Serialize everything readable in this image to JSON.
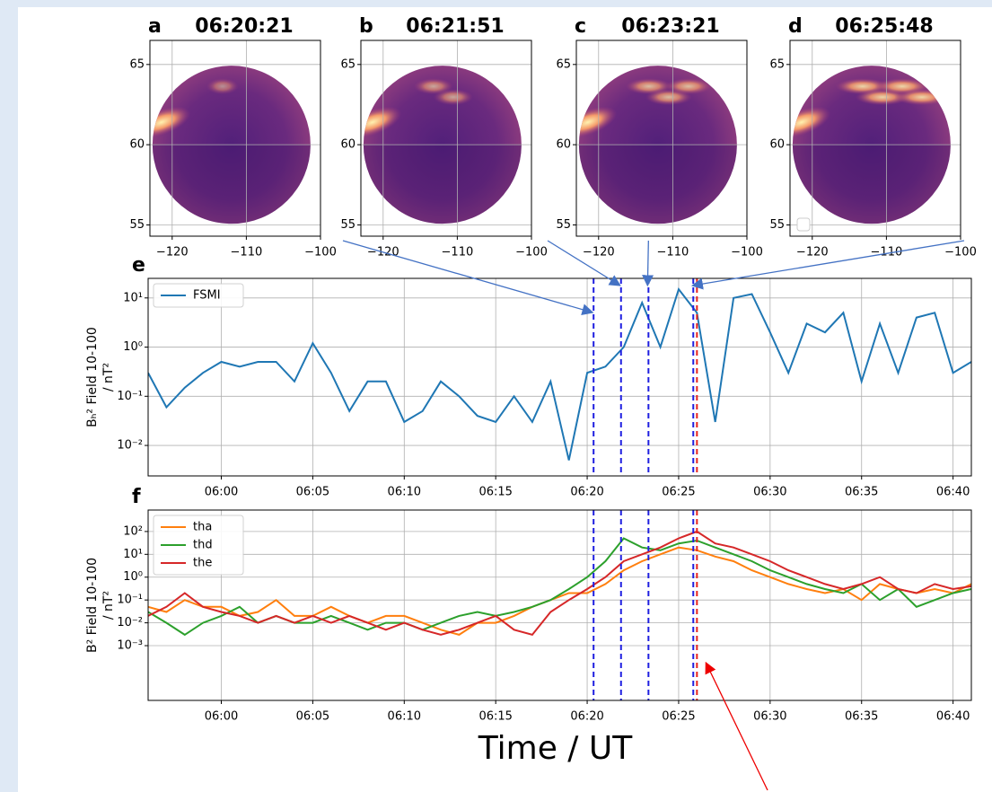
{
  "chart_data": [
    {
      "type": "image",
      "label": "a",
      "title": "06:20:21",
      "xlim": [
        -123,
        -100
      ],
      "ylim": [
        54.3,
        66.5
      ],
      "xticks": [
        {
          "value": -120,
          "label": "−120"
        },
        {
          "value": -110,
          "label": "−110"
        },
        {
          "value": -100,
          "label": "−100"
        }
      ],
      "yticks": [
        55,
        60,
        65
      ],
      "grid": true
    },
    {
      "type": "image",
      "label": "b",
      "title": "06:21:51",
      "xlim": [
        -123,
        -100
      ],
      "ylim": [
        54.3,
        66.5
      ],
      "xticks": [
        {
          "value": -120,
          "label": "−120"
        },
        {
          "value": -110,
          "label": "−110"
        },
        {
          "value": -100,
          "label": "−100"
        }
      ],
      "yticks": [
        55,
        60,
        65
      ],
      "grid": true
    },
    {
      "type": "image",
      "label": "c",
      "title": "06:23:21",
      "xlim": [
        -123,
        -100
      ],
      "ylim": [
        54.3,
        66.5
      ],
      "xticks": [
        {
          "value": -120,
          "label": "−120"
        },
        {
          "value": -110,
          "label": "−110"
        },
        {
          "value": -100,
          "label": "−100"
        }
      ],
      "yticks": [
        55,
        60,
        65
      ],
      "grid": true
    },
    {
      "type": "image",
      "label": "d",
      "title": "06:25:48",
      "xlim": [
        -123,
        -100
      ],
      "ylim": [
        54.3,
        66.5
      ],
      "xticks": [
        {
          "value": -120,
          "label": "−120"
        },
        {
          "value": -110,
          "label": "−110"
        },
        {
          "value": -100,
          "label": "−100"
        }
      ],
      "yticks": [
        55,
        60,
        65
      ],
      "grid": true
    },
    {
      "type": "line",
      "label": "e",
      "ylabel": [
        "Bₕ² Field 10-100",
        "/ nT²"
      ],
      "log_y": true,
      "grid": true,
      "legend": "upper left",
      "xlim": [
        "05:56",
        "06:41"
      ],
      "ylim": [
        0.0024,
        25
      ],
      "xticks": [
        "06:00",
        "06:05",
        "06:10",
        "06:15",
        "06:20",
        "06:25",
        "06:30",
        "06:35",
        "06:40"
      ],
      "yticks": [
        {
          "value": 0.01,
          "label": "10⁻²"
        },
        {
          "value": 0.1,
          "label": "10⁻¹"
        },
        {
          "value": 1,
          "label": "10⁰"
        },
        {
          "value": 10,
          "label": "10¹"
        }
      ],
      "event_line": "06:26",
      "event_color": "#e8231c",
      "panel_line_color": "#1f1fe0",
      "x": [
        "05:56",
        "05:57",
        "05:58",
        "05:59",
        "06:00",
        "06:01",
        "06:02",
        "06:03",
        "06:04",
        "06:05",
        "06:06",
        "06:07",
        "06:08",
        "06:09",
        "06:10",
        "06:11",
        "06:12",
        "06:13",
        "06:14",
        "06:15",
        "06:16",
        "06:17",
        "06:18",
        "06:19",
        "06:20",
        "06:21",
        "06:22",
        "06:23",
        "06:24",
        "06:25",
        "06:26",
        "06:27",
        "06:28",
        "06:29",
        "06:30",
        "06:31",
        "06:32",
        "06:33",
        "06:34",
        "06:35",
        "06:36",
        "06:37",
        "06:38",
        "06:39",
        "06:40",
        "06:41"
      ],
      "series": [
        {
          "name": "FSMI",
          "color": "#1f77b4",
          "values": [
            0.3,
            0.06,
            0.15,
            0.3,
            0.5,
            0.4,
            0.5,
            0.5,
            0.2,
            1.2,
            0.3,
            0.05,
            0.2,
            0.2,
            0.03,
            0.05,
            0.2,
            0.1,
            0.04,
            0.03,
            0.1,
            0.03,
            0.2,
            0.005,
            0.3,
            0.4,
            1,
            8,
            1,
            15,
            5,
            0.03,
            10,
            12,
            2,
            0.3,
            3,
            2,
            5,
            0.2,
            3,
            0.3,
            4,
            5,
            0.3,
            0.5
          ]
        }
      ]
    },
    {
      "type": "line",
      "label": "f",
      "ylabel": [
        "B² Field 10-100",
        "/ nT²"
      ],
      "xlabel": "Time / UT",
      "log_y": true,
      "grid": true,
      "legend": "upper left",
      "xlim": [
        "05:56",
        "06:41"
      ],
      "ylim": [
        4e-06,
        870
      ],
      "xticks": [
        "06:00",
        "06:05",
        "06:10",
        "06:15",
        "06:20",
        "06:25",
        "06:30",
        "06:35",
        "06:40"
      ],
      "yticks": [
        {
          "value": 0.001,
          "label": "10⁻³"
        },
        {
          "value": 0.01,
          "label": "10⁻²"
        },
        {
          "value": 0.1,
          "label": "10⁻¹"
        },
        {
          "value": 1,
          "label": "10⁰"
        },
        {
          "value": 10,
          "label": "10¹"
        },
        {
          "value": 100,
          "label": "10²"
        }
      ],
      "event_line": "06:26",
      "event_color": "#e8231c",
      "panel_line_color": "#1f1fe0",
      "x": [
        "05:56",
        "05:57",
        "05:58",
        "05:59",
        "06:00",
        "06:01",
        "06:02",
        "06:03",
        "06:04",
        "06:05",
        "06:06",
        "06:07",
        "06:08",
        "06:09",
        "06:10",
        "06:11",
        "06:12",
        "06:13",
        "06:14",
        "06:15",
        "06:16",
        "06:17",
        "06:18",
        "06:19",
        "06:20",
        "06:21",
        "06:22",
        "06:23",
        "06:24",
        "06:25",
        "06:26",
        "06:27",
        "06:28",
        "06:29",
        "06:30",
        "06:31",
        "06:32",
        "06:33",
        "06:34",
        "06:35",
        "06:36",
        "06:37",
        "06:38",
        "06:39",
        "06:40",
        "06:41"
      ],
      "series": [
        {
          "name": "tha",
          "color": "#ff7f0e",
          "values": [
            0.05,
            0.03,
            0.1,
            0.05,
            0.05,
            0.02,
            0.03,
            0.1,
            0.02,
            0.02,
            0.05,
            0.02,
            0.01,
            0.02,
            0.02,
            0.01,
            0.005,
            0.003,
            0.01,
            0.01,
            0.02,
            0.05,
            0.1,
            0.2,
            0.2,
            0.5,
            2,
            5,
            10,
            20,
            15,
            8,
            5,
            2,
            1,
            0.5,
            0.3,
            0.2,
            0.3,
            0.1,
            0.5,
            0.3,
            0.2,
            0.3,
            0.2,
            0.5
          ]
        },
        {
          "name": "thd",
          "color": "#2ca02c",
          "values": [
            0.03,
            0.01,
            0.003,
            0.01,
            0.02,
            0.05,
            0.01,
            0.02,
            0.01,
            0.01,
            0.02,
            0.01,
            0.005,
            0.01,
            0.01,
            0.005,
            0.01,
            0.02,
            0.03,
            0.02,
            0.03,
            0.05,
            0.1,
            0.3,
            1,
            5,
            50,
            20,
            15,
            30,
            40,
            20,
            10,
            5,
            2,
            1,
            0.5,
            0.3,
            0.2,
            0.5,
            0.1,
            0.3,
            0.05,
            0.1,
            0.2,
            0.3
          ]
        },
        {
          "name": "the",
          "color": "#d62728",
          "values": [
            0.02,
            0.05,
            0.2,
            0.05,
            0.03,
            0.02,
            0.01,
            0.02,
            0.01,
            0.02,
            0.01,
            0.02,
            0.01,
            0.005,
            0.01,
            0.005,
            0.003,
            0.005,
            0.01,
            0.02,
            0.005,
            0.003,
            0.03,
            0.1,
            0.3,
            1,
            5,
            10,
            20,
            50,
            100,
            30,
            20,
            10,
            5,
            2,
            1,
            0.5,
            0.3,
            0.5,
            1,
            0.3,
            0.2,
            0.5,
            0.3,
            0.4
          ]
        }
      ]
    }
  ]
}
